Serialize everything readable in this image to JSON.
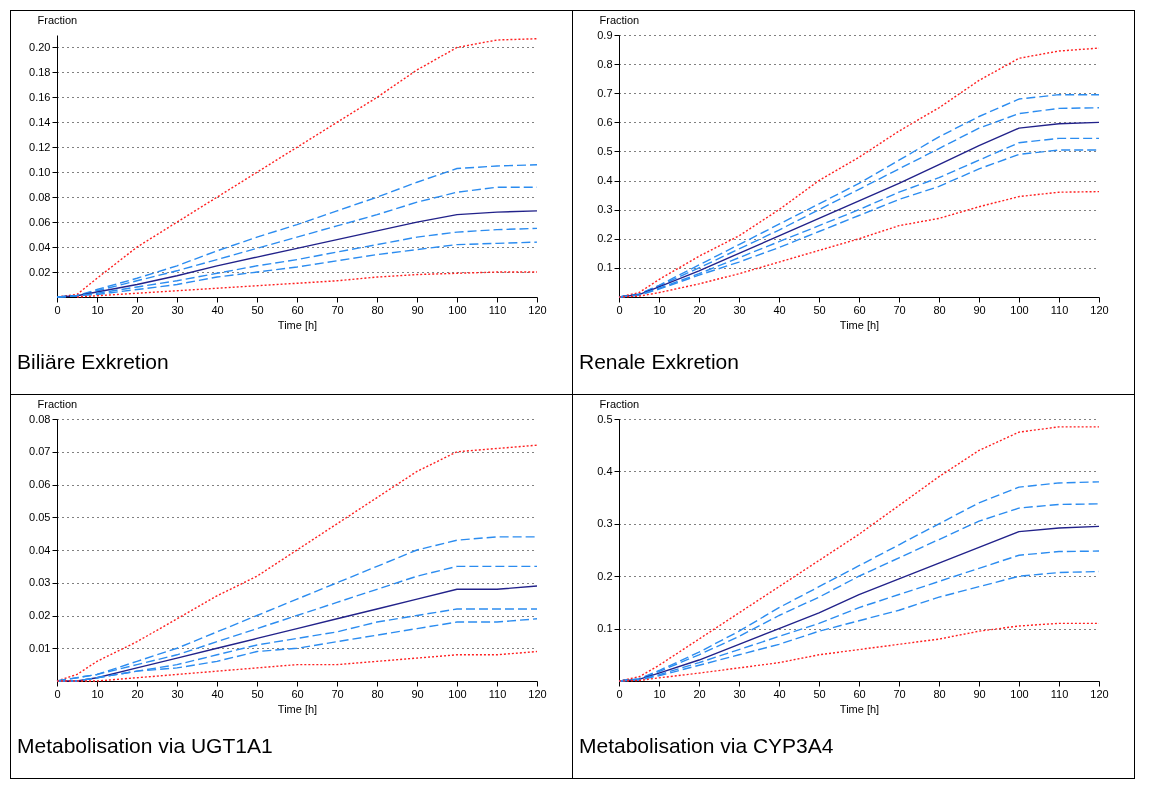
{
  "chart_data": [
    {
      "type": "line",
      "title": "Biliäre Exkretion",
      "xlabel": "Time [h]",
      "ylabel": "Fraction",
      "grid": "y",
      "x": [
        0,
        5,
        10,
        20,
        30,
        40,
        50,
        60,
        70,
        80,
        90,
        100,
        110,
        120
      ],
      "xlim": [
        0,
        120
      ],
      "xticks": [
        0,
        10,
        20,
        30,
        40,
        50,
        60,
        70,
        80,
        90,
        100,
        110,
        120
      ],
      "ylim": [
        0,
        0.21
      ],
      "yticks": [
        0.02,
        0.04,
        0.06,
        0.08,
        {
          "value": 0.1,
          "label": "0.10"
        },
        0.12,
        0.14,
        0.16,
        0.18,
        {
          "value": 0.2,
          "label": "0.20"
        }
      ],
      "series": [
        {
          "color": "#ff2020",
          "line_style": "dotted",
          "values": [
            0,
            0.002,
            0.015,
            0.04,
            0.06,
            0.08,
            0.1,
            0.12,
            0.14,
            0.16,
            0.182,
            0.2,
            0.206,
            0.207
          ]
        },
        {
          "color": "#2b8cf0",
          "line_style": "dashed",
          "values": [
            0,
            0.001,
            0.006,
            0.015,
            0.025,
            0.037,
            0.048,
            0.058,
            0.069,
            0.08,
            0.092,
            0.103,
            0.105,
            0.106
          ]
        },
        {
          "color": "#2b8cf0",
          "line_style": "dashed",
          "values": [
            0,
            0.001,
            0.005,
            0.013,
            0.021,
            0.03,
            0.039,
            0.048,
            0.057,
            0.066,
            0.076,
            0.084,
            0.088,
            0.088
          ]
        },
        {
          "color": "#22228a",
          "line_style": "solid",
          "values": [
            0,
            0.001,
            0.004,
            0.01,
            0.017,
            0.025,
            0.032,
            0.039,
            0.046,
            0.053,
            0.06,
            0.066,
            0.068,
            0.069
          ]
        },
        {
          "color": "#2b8cf0",
          "line_style": "dashed",
          "values": [
            0,
            0.001,
            0.003,
            0.008,
            0.013,
            0.019,
            0.025,
            0.03,
            0.036,
            0.042,
            0.048,
            0.052,
            0.054,
            0.055
          ]
        },
        {
          "color": "#2b8cf0",
          "line_style": "dashed",
          "values": [
            0,
            0.001,
            0.002,
            0.006,
            0.01,
            0.016,
            0.02,
            0.024,
            0.029,
            0.034,
            0.038,
            0.042,
            0.043,
            0.044
          ]
        },
        {
          "color": "#ff2020",
          "line_style": "dotted",
          "values": [
            null,
            0,
            0.001,
            0.003,
            0.005,
            0.007,
            0.009,
            0.011,
            0.013,
            0.016,
            0.018,
            0.019,
            0.02,
            0.02
          ]
        }
      ]
    },
    {
      "type": "line",
      "title": "Renale Exkretion",
      "xlabel": "Time [h]",
      "ylabel": "Fraction",
      "grid": "y",
      "x": [
        0,
        5,
        10,
        20,
        30,
        40,
        50,
        60,
        70,
        80,
        90,
        100,
        110,
        120
      ],
      "xlim": [
        0,
        120
      ],
      "xticks": [
        0,
        10,
        20,
        30,
        40,
        50,
        60,
        70,
        80,
        90,
        100,
        110,
        120
      ],
      "ylim": [
        0,
        0.9
      ],
      "yticks": [
        0.1,
        0.2,
        0.3,
        0.4,
        0.5,
        0.6,
        0.7,
        0.8,
        0.9
      ],
      "series": [
        {
          "color": "#ff2020",
          "line_style": "dotted",
          "values": [
            0,
            0.015,
            0.06,
            0.14,
            0.21,
            0.3,
            0.4,
            0.48,
            0.57,
            0.65,
            0.744,
            0.82,
            0.845,
            0.855
          ]
        },
        {
          "color": "#2b8cf0",
          "line_style": "dashed",
          "values": [
            0,
            0.01,
            0.04,
            0.11,
            0.18,
            0.25,
            0.32,
            0.39,
            0.47,
            0.55,
            0.62,
            0.68,
            0.695,
            0.695
          ]
        },
        {
          "color": "#2b8cf0",
          "line_style": "dashed",
          "values": [
            0,
            0.01,
            0.038,
            0.1,
            0.165,
            0.23,
            0.3,
            0.37,
            0.44,
            0.51,
            0.58,
            0.63,
            0.648,
            0.65
          ]
        },
        {
          "color": "#22228a",
          "line_style": "solid",
          "values": [
            0,
            0.008,
            0.035,
            0.09,
            0.15,
            0.21,
            0.27,
            0.33,
            0.39,
            0.455,
            0.52,
            0.58,
            0.595,
            0.6
          ]
        },
        {
          "color": "#2b8cf0",
          "line_style": "dashed",
          "values": [
            0,
            0.007,
            0.03,
            0.08,
            0.135,
            0.19,
            0.245,
            0.3,
            0.36,
            0.41,
            0.47,
            0.53,
            0.545,
            0.545
          ]
        },
        {
          "color": "#2b8cf0",
          "line_style": "dashed",
          "values": [
            0,
            0.006,
            0.027,
            0.075,
            0.12,
            0.17,
            0.225,
            0.28,
            0.335,
            0.38,
            0.44,
            0.49,
            0.505,
            0.505
          ]
        },
        {
          "color": "#ff2020",
          "line_style": "dotted",
          "values": [
            0,
            0.003,
            0.015,
            0.045,
            0.08,
            0.12,
            0.16,
            0.2,
            0.245,
            0.27,
            0.31,
            0.345,
            0.36,
            0.362
          ]
        }
      ]
    },
    {
      "type": "line",
      "title": "Metabolisation via UGT1A1",
      "xlabel": "Time [h]",
      "ylabel": "Fraction",
      "grid": "y",
      "x": [
        0,
        5,
        10,
        20,
        30,
        40,
        50,
        60,
        70,
        80,
        90,
        100,
        110,
        120
      ],
      "xlim": [
        0,
        120
      ],
      "xticks": [
        0,
        10,
        20,
        30,
        40,
        50,
        60,
        70,
        80,
        90,
        100,
        110,
        120
      ],
      "ylim": [
        0,
        0.08
      ],
      "yticks": [
        0.01,
        0.02,
        0.03,
        0.04,
        0.05,
        0.06,
        0.07,
        0.08
      ],
      "series": [
        {
          "color": "#ff2020",
          "line_style": "dotted",
          "values": [
            0,
            0.002,
            0.006,
            0.012,
            0.019,
            0.026,
            0.032,
            0.04,
            0.048,
            0.056,
            0.064,
            0.07,
            0.071,
            0.072
          ]
        },
        {
          "color": "#2b8cf0",
          "line_style": "dashed",
          "values": [
            0,
            0.001,
            0.002,
            0.006,
            0.01,
            0.015,
            0.02,
            0.025,
            0.03,
            0.035,
            0.04,
            0.043,
            0.044,
            0.044
          ]
        },
        {
          "color": "#2b8cf0",
          "line_style": "dashed",
          "values": [
            0,
            0.001,
            0.002,
            0.005,
            0.008,
            0.012,
            0.016,
            0.02,
            0.024,
            0.028,
            0.032,
            0.035,
            0.035,
            0.035
          ]
        },
        {
          "color": "#22228a",
          "line_style": "solid",
          "values": [
            0,
            0,
            0.001,
            0.004,
            0.007,
            0.01,
            0.013,
            0.016,
            0.019,
            0.022,
            0.025,
            0.028,
            0.028,
            0.029
          ]
        },
        {
          "color": "#2b8cf0",
          "line_style": "dashed",
          "values": [
            0,
            0,
            0.001,
            0.003,
            0.005,
            0.008,
            0.011,
            0.013,
            0.015,
            0.018,
            0.02,
            0.022,
            0.022,
            0.022
          ]
        },
        {
          "color": "#2b8cf0",
          "line_style": "dashed",
          "values": [
            0,
            0,
            0.001,
            0.003,
            0.004,
            0.006,
            0.009,
            0.01,
            0.012,
            0.014,
            0.016,
            0.018,
            0.018,
            0.019
          ]
        },
        {
          "color": "#ff2020",
          "line_style": "dotted",
          "values": [
            0,
            0,
            0,
            0.001,
            0.002,
            0.003,
            0.004,
            0.005,
            0.005,
            0.006,
            0.007,
            0.008,
            0.008,
            0.009
          ]
        }
      ]
    },
    {
      "type": "line",
      "title": "Metabolisation via CYP3A4",
      "xlabel": "Time [h]",
      "ylabel": "Fraction",
      "grid": "y",
      "x": [
        0,
        5,
        10,
        20,
        30,
        40,
        50,
        60,
        70,
        80,
        90,
        100,
        110,
        120
      ],
      "xlim": [
        0,
        120
      ],
      "xticks": [
        0,
        10,
        20,
        30,
        40,
        50,
        60,
        70,
        80,
        90,
        100,
        110,
        120
      ],
      "ylim": [
        0,
        0.5
      ],
      "yticks": [
        0.1,
        0.2,
        0.3,
        0.4,
        0.5
      ],
      "series": [
        {
          "color": "#ff2020",
          "line_style": "dotted",
          "values": [
            0,
            0.008,
            0.03,
            0.08,
            0.13,
            0.18,
            0.23,
            0.28,
            0.335,
            0.39,
            0.44,
            0.475,
            0.485,
            0.485
          ]
        },
        {
          "color": "#2b8cf0",
          "line_style": "dashed",
          "values": [
            0,
            0.004,
            0.02,
            0.055,
            0.095,
            0.14,
            0.18,
            0.22,
            0.26,
            0.3,
            0.34,
            0.37,
            0.378,
            0.38
          ]
        },
        {
          "color": "#2b8cf0",
          "line_style": "dashed",
          "values": [
            0,
            0.004,
            0.018,
            0.05,
            0.085,
            0.125,
            0.16,
            0.2,
            0.235,
            0.27,
            0.305,
            0.33,
            0.337,
            0.338
          ]
        },
        {
          "color": "#22228a",
          "line_style": "solid",
          "values": [
            0,
            0.003,
            0.015,
            0.04,
            0.07,
            0.1,
            0.13,
            0.165,
            0.195,
            0.225,
            0.255,
            0.285,
            0.292,
            0.295
          ]
        },
        {
          "color": "#2b8cf0",
          "line_style": "dashed",
          "values": [
            0,
            0.003,
            0.012,
            0.035,
            0.06,
            0.085,
            0.11,
            0.14,
            0.165,
            0.19,
            0.215,
            0.24,
            0.247,
            0.248
          ]
        },
        {
          "color": "#2b8cf0",
          "line_style": "dashed",
          "values": [
            0,
            0.002,
            0.01,
            0.03,
            0.05,
            0.07,
            0.095,
            0.115,
            0.135,
            0.16,
            0.18,
            0.2,
            0.207,
            0.209
          ]
        },
        {
          "color": "#ff2020",
          "line_style": "dotted",
          "values": [
            0,
            0.001,
            0.006,
            0.015,
            0.025,
            0.035,
            0.05,
            0.06,
            0.07,
            0.08,
            0.095,
            0.105,
            0.11,
            0.11
          ]
        }
      ]
    }
  ]
}
